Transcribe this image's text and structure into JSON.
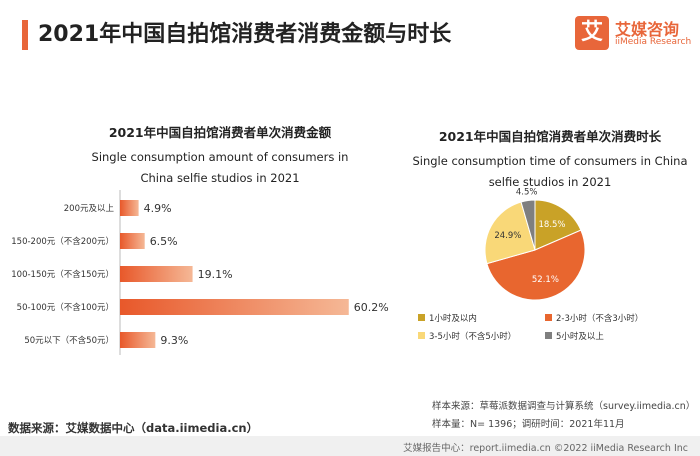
{
  "page": {
    "title": "2021年中国自拍馆消费者消费金额与时长",
    "logo_mark": "艾",
    "logo_cn": "艾媒咨询",
    "logo_en": "iiMedia Research"
  },
  "footer": {
    "source": "数据来源：艾媒数据中心（data.iimedia.cn）",
    "sample_source": "样本来源：草莓派数据调查与计算系统（survey.iimedia.cn）",
    "sample_size": "样本量：N= 1396；调研时间：2021年11月",
    "bottom_bar": "艾媒报告中心：report.iimedia.cn   ©2022  iiMedia Research  Inc"
  },
  "colors": {
    "accent": "#e8663a",
    "bar_start": "#e8582a",
    "bar_end": "#f5b896",
    "pie": [
      "#c9a227",
      "#e8662f",
      "#f9d878",
      "#7f7f7f"
    ]
  },
  "chart_data": [
    {
      "type": "bar",
      "orientation": "horizontal",
      "title_cn": "2021年中国自拍馆消费者单次消费金额",
      "title_en": "Single consumption amount of consumers in China selfie studios in 2021",
      "categories": [
        "200元及以上",
        "150-200元（不含200元）",
        "100-150元（不含150元）",
        "50-100元（不含100元）",
        "50元以下（不含50元）"
      ],
      "values": [
        4.9,
        6.5,
        19.1,
        60.2,
        9.3
      ],
      "labels": [
        "4.9%",
        "6.5%",
        "19.1%",
        "60.2%",
        "9.3%"
      ],
      "unit": "%"
    },
    {
      "type": "pie",
      "title_cn": "2021年中国自拍馆消费者单次消费时长",
      "title_en": "Single consumption time of consumers in China selfie studios in 2021",
      "categories": [
        "1小时及以内",
        "2-3小时（不含3小时）",
        "3-5小时（不含5小时）",
        "5小时及以上"
      ],
      "values": [
        18.5,
        52.1,
        24.9,
        4.5
      ],
      "labels": [
        "18.5%",
        "52.1%",
        "24.9%",
        "4.5%"
      ],
      "legend_position": "bottom",
      "unit": "%"
    }
  ]
}
